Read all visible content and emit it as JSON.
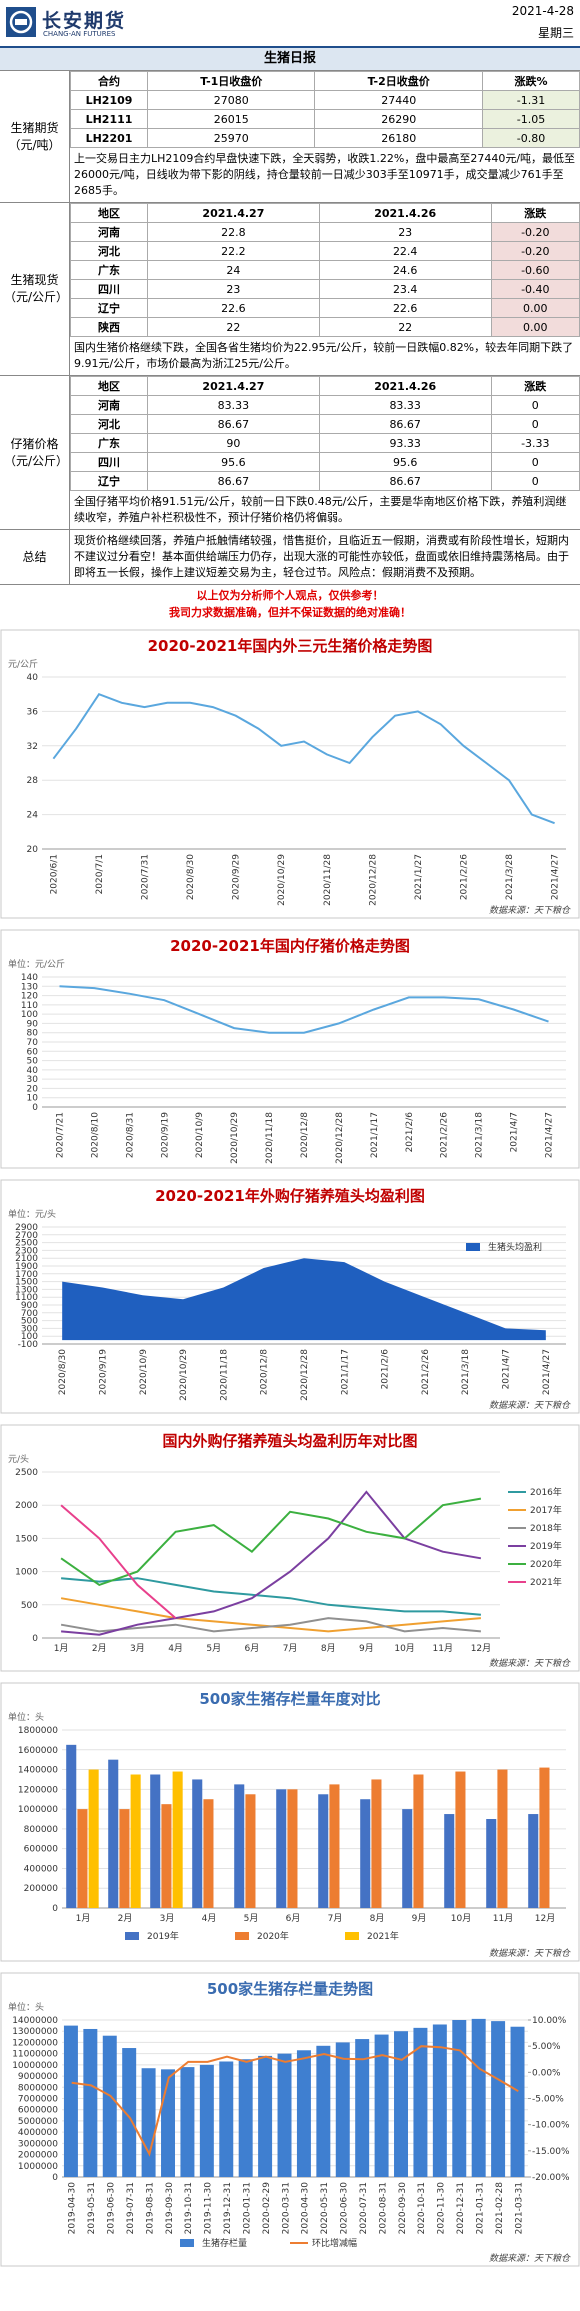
{
  "header": {
    "company": "长安期货",
    "company_en": "CHANG-AN FUTURES",
    "date": "2021-4-28",
    "weekday": "星期三"
  },
  "report_title": "生猪日报",
  "sections": [
    {
      "label": "生猪期货（元/吨）",
      "table": {
        "header": [
          "合约",
          "T-1日收盘价",
          "T-2日收盘价",
          "涨跌%"
        ],
        "rows": [
          [
            "LH2109",
            "27080",
            "27440",
            "-1.31"
          ],
          [
            "LH2111",
            "26015",
            "26290",
            "-1.05"
          ],
          [
            "LH2201",
            "25970",
            "26180",
            "-0.80"
          ]
        ]
      },
      "text": "上一交易日主力LH2109合约早盘快速下跌，全天弱势，收跌1.22%，盘中最高至27440元/吨，最低至26000元/吨，日线收为带下影的阴线，持仓量较前一日减少303手至10971手，成交量减少761手至2685手。"
    },
    {
      "label": "生猪现货（元/公斤）",
      "table": {
        "header": [
          "地区",
          "2021.4.27",
          "2021.4.26",
          "涨跌"
        ],
        "rows": [
          [
            "河南",
            "22.8",
            "23",
            "-0.20"
          ],
          [
            "河北",
            "22.2",
            "22.4",
            "-0.20"
          ],
          [
            "广东",
            "24",
            "24.6",
            "-0.60"
          ],
          [
            "四川",
            "23",
            "23.4",
            "-0.40"
          ],
          [
            "辽宁",
            "22.6",
            "22.6",
            "0.00"
          ],
          [
            "陕西",
            "22",
            "22",
            "0.00"
          ]
        ]
      },
      "text": "国内生猪价格继续下跌，全国各省生猪均价为22.95元/公斤，较前一日跌幅0.82%，较去年同期下跌了9.91元/公斤，市场价最高为浙江25元/公斤。"
    },
    {
      "label": "仔猪价格（元/公斤）",
      "table": {
        "header": [
          "地区",
          "2021.4.27",
          "2021.4.26",
          "涨跌"
        ],
        "rows": [
          [
            "河南",
            "83.33",
            "83.33",
            "0"
          ],
          [
            "河北",
            "86.67",
            "86.67",
            "0"
          ],
          [
            "广东",
            "90",
            "93.33",
            "-3.33"
          ],
          [
            "四川",
            "95.6",
            "95.6",
            "0"
          ],
          [
            "辽宁",
            "86.67",
            "86.67",
            "0"
          ]
        ]
      },
      "text": "全国仔猪平均价格91.51元/公斤，较前一日下跌0.48元/公斤，主要是华南地区价格下跌，养殖利润继续收窄，养殖户补栏积极性不，预计仔猪价格仍将偏弱。"
    }
  ],
  "summary": {
    "label": "总结",
    "text": "现货价格继续回落，养殖户抵触情绪较强，惜售挺价，且临近五一假期，消费或有阶段性增长，短期内不建议过分看空！基本面供给端压力仍存，出现大涨的可能性亦较低，盘面或依旧维持震荡格局。由于即将五一长假，操作上建议短差交易为主，轻仓过节。风险点：假期消费不及预期。"
  },
  "disclaimer": [
    "以上仅为分析师个人观点，仅供参考！",
    "我司力求数据准确，但并不保证数据的绝对准确！"
  ],
  "chart_data": [
    {
      "type": "line",
      "title": "2020-2021年国内外三元生猪价格走势图",
      "title_color": "#c00000",
      "unit": "元/公斤",
      "source": "数据来源：天下粮仓",
      "grid": true,
      "categories": [
        "2020/6/1",
        null,
        "2020/7/1",
        null,
        "2020/7/31",
        null,
        "2020/8/30",
        null,
        "2020/9/29",
        null,
        "2020/10/29",
        null,
        "2020/11/28",
        null,
        "2020/12/28",
        null,
        "2021/1/27",
        null,
        "2021/2/26",
        null,
        "2021/3/28",
        null,
        "2021/4/27"
      ],
      "series": [
        {
          "name": null,
          "color": "#5aa7de",
          "values": [
            30.5,
            34,
            38,
            37,
            36.5,
            37,
            37,
            36.5,
            35.5,
            34,
            32,
            32.5,
            31,
            30,
            33,
            35.5,
            36,
            34.5,
            32,
            30,
            28,
            24,
            23
          ]
        }
      ],
      "ylim": [
        20,
        40
      ],
      "yticks": [
        20,
        24,
        28,
        32,
        36,
        40
      ]
    },
    {
      "type": "line",
      "title": "2020-2021年国内仔猪价格走势图",
      "title_color": "#c00000",
      "unit": "单位：元/公斤",
      "grid": true,
      "categories": [
        "2020/7/21",
        "2020/8/10",
        "2020/8/31",
        "2020/9/19",
        "2020/10/9",
        "2020/10/29",
        "2020/11/18",
        "2020/12/8",
        "2020/12/28",
        "2021/1/17",
        "2021/2/6",
        "2021/2/26",
        "2021/3/18",
        "2021/4/7",
        "2021/4/27"
      ],
      "series": [
        {
          "name": null,
          "color": "#5aa7de",
          "values": [
            130,
            128,
            122,
            115,
            100,
            85,
            80,
            80,
            90,
            105,
            118,
            118,
            116,
            105,
            92
          ]
        }
      ],
      "ylim": [
        0,
        140
      ],
      "yticks": [
        0,
        10,
        20,
        30,
        40,
        50,
        60,
        70,
        80,
        90,
        100,
        110,
        120,
        130,
        140
      ]
    },
    {
      "type": "area",
      "title": "2020-2021年外购仔猪养殖头均盈利图",
      "title_color": "#c00000",
      "unit": "单位：元/头",
      "source": "数据来源：天下粮仓",
      "grid": true,
      "legend": "top-right",
      "categories": [
        "2020/8/30",
        "2020/9/19",
        "2020/10/9",
        "2020/10/29",
        "2020/11/18",
        "2020/12/8",
        "2020/12/28",
        "2021/1/17",
        "2021/2/6",
        "2021/2/26",
        "2021/3/18",
        "2021/4/7",
        "2021/4/27"
      ],
      "series": [
        {
          "name": "生猪头均盈利",
          "color": "#1f5fbf",
          "values": [
            1500,
            1350,
            1150,
            1050,
            1350,
            1850,
            2100,
            2000,
            1500,
            1100,
            700,
            300,
            250
          ]
        }
      ],
      "ylim": [
        -100,
        2900
      ],
      "yticks": [
        -100,
        100,
        300,
        500,
        700,
        900,
        1100,
        1300,
        1500,
        1700,
        1900,
        2100,
        2300,
        2500,
        2700,
        2900
      ]
    },
    {
      "type": "line",
      "title": "国内外购仔猪养殖头均盈利历年对比图",
      "title_color": "#c00000",
      "unit": "元/头",
      "source": "数据来源：天下粮仓",
      "grid": true,
      "legend": "right",
      "categories": [
        "1月",
        "2月",
        "3月",
        "4月",
        "5月",
        "6月",
        "7月",
        "8月",
        "9月",
        "10月",
        "11月",
        "12月"
      ],
      "series": [
        {
          "name": "2016年",
          "color": "#2f9aa0",
          "values": [
            900,
            850,
            900,
            800,
            700,
            650,
            600,
            500,
            450,
            400,
            400,
            350
          ]
        },
        {
          "name": "2017年",
          "color": "#f0a030",
          "values": [
            600,
            500,
            400,
            300,
            250,
            200,
            150,
            100,
            150,
            200,
            250,
            300
          ]
        },
        {
          "name": "2018年",
          "color": "#909090",
          "values": [
            200,
            100,
            150,
            200,
            100,
            150,
            200,
            300,
            250,
            100,
            150,
            100
          ]
        },
        {
          "name": "2019年",
          "color": "#7b3fa0",
          "values": [
            100,
            50,
            200,
            300,
            400,
            600,
            1000,
            1500,
            2200,
            1500,
            1300,
            1200
          ]
        },
        {
          "name": "2020年",
          "color": "#3cb040",
          "values": [
            1200,
            800,
            1000,
            1600,
            1700,
            1300,
            1900,
            1800,
            1600,
            1500,
            2000,
            2100
          ]
        },
        {
          "name": "2021年",
          "color": "#e8408c",
          "values": [
            2000,
            1500,
            800,
            300,
            null,
            null,
            null,
            null,
            null,
            null,
            null,
            null
          ]
        }
      ],
      "ylim": [
        0,
        2500
      ],
      "yticks": [
        0,
        500,
        1000,
        1500,
        2000,
        2500
      ]
    },
    {
      "type": "bar",
      "title": "500家生猪存栏量年度对比",
      "title_color": "#3a6cb0",
      "unit": "单位：头",
      "source": "数据来源：天下粮仓",
      "grid": true,
      "legend": "bottom",
      "categories": [
        "1月",
        "2月",
        "3月",
        "4月",
        "5月",
        "6月",
        "7月",
        "8月",
        "9月",
        "10月",
        "11月",
        "12月"
      ],
      "series": [
        {
          "name": "2019年",
          "color": "#4472c4",
          "values": [
            1650000,
            1500000,
            1350000,
            1300000,
            1250000,
            1200000,
            1150000,
            1100000,
            1000000,
            950000,
            900000,
            950000
          ]
        },
        {
          "name": "2020年",
          "color": "#ed7d31",
          "values": [
            1000000,
            1000000,
            1050000,
            1100000,
            1150000,
            1200000,
            1250000,
            1300000,
            1350000,
            1380000,
            1400000,
            1420000
          ]
        },
        {
          "name": "2021年",
          "color": "#ffc000",
          "values": [
            1400000,
            1350000,
            1380000,
            null,
            null,
            null,
            null,
            null,
            null,
            null,
            null,
            null
          ]
        }
      ],
      "ylim": [
        0,
        1800000
      ],
      "yticks": [
        0,
        200000,
        400000,
        600000,
        800000,
        1000000,
        1200000,
        1400000,
        1600000,
        1800000
      ]
    },
    {
      "type": "combo",
      "title": "500家生猪存栏量走势图",
      "title_color": "#3a6cb0",
      "unit": "单位：头",
      "source": "数据来源：天下粮仓",
      "grid": true,
      "legend": "bottom",
      "categories": [
        "2019-04-30",
        "2019-05-31",
        "2019-06-30",
        "2019-07-31",
        "2019-08-31",
        "2019-09-30",
        "2019-10-31",
        "2019-11-30",
        "2019-12-31",
        "2020-01-31",
        "2020-02-29",
        "2020-03-31",
        "2020-04-30",
        "2020-05-31",
        "2020-06-30",
        "2020-07-31",
        "2020-08-31",
        "2020-09-30",
        "2020-10-31",
        "2020-11-30",
        "2020-12-31",
        "2021-01-31",
        "2021-02-28",
        "2021-03-31"
      ],
      "series": [
        {
          "name": "生猪存栏量",
          "color": "#3f7fd0",
          "values": [
            13500000,
            13200000,
            12600000,
            11500000,
            9700000,
            9600000,
            9800000,
            10000000,
            10300000,
            10500000,
            10800000,
            11000000,
            11300000,
            11700000,
            12000000,
            12300000,
            12700000,
            13000000,
            13300000,
            13600000,
            14000000,
            14100000,
            13900000,
            13400000
          ]
        },
        {
          "name": "环比增减幅",
          "color": "#ed7d31",
          "axis": "y2",
          "values": [
            -2,
            -2.5,
            -4.5,
            -8.7,
            -15.6,
            -1,
            2,
            2,
            3,
            2,
            3,
            2,
            2.7,
            3.5,
            2.6,
            2.5,
            3.3,
            2.4,
            5,
            4.8,
            4.2,
            0.7,
            -1.4,
            -3.6
          ]
        }
      ],
      "ylim": [
        0,
        14000000
      ],
      "yticks": [
        0,
        1000000,
        2000000,
        3000000,
        4000000,
        5000000,
        6000000,
        7000000,
        8000000,
        9000000,
        10000000,
        11000000,
        12000000,
        13000000,
        14000000
      ],
      "y2lim": [
        -20,
        10
      ],
      "y2ticks": [
        {
          "value": -20,
          "label": "-20.00%"
        },
        {
          "value": -15,
          "label": "-15.00%"
        },
        {
          "value": -10,
          "label": "-10.00%"
        },
        {
          "value": -5,
          "label": "-5.00%"
        },
        {
          "value": 0,
          "label": "0.00%"
        },
        {
          "value": 5,
          "label": "5.00%"
        },
        {
          "value": 10,
          "label": "10.00%"
        }
      ]
    }
  ]
}
